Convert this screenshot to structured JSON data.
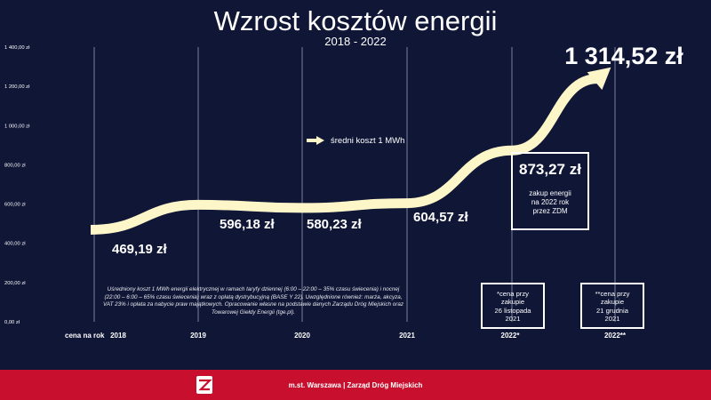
{
  "chart_data": {
    "type": "line",
    "title": "Wzrost kosztów energii",
    "subtitle": "2018 - 2022",
    "x_prefix_label": "cena na rok",
    "categories": [
      "2018",
      "2019",
      "2020",
      "2021",
      "2022*",
      "2022**"
    ],
    "series": [
      {
        "name": "średni koszt 1 MWh",
        "values": [
          469.19,
          596.18,
          580.23,
          604.57,
          873.27,
          1314.52
        ]
      }
    ],
    "data_labels": [
      "469,19 zł",
      "596,18 zł",
      "580,23 zł",
      "604,57 zł",
      "873,27 zł",
      "1 314,52 zł"
    ],
    "yticks": [
      0,
      200,
      400,
      600,
      800,
      1000,
      1200,
      1400
    ],
    "ytick_labels": [
      "0,00 zł",
      "200,00 zł",
      "400,00 zł",
      "600,00 zł",
      "800,00 zł",
      "1 000,00 zł",
      "1 200,00 zł",
      "1 400,00 zł"
    ],
    "ylim": [
      0,
      1400
    ],
    "grid": "vertical lines at categories",
    "legend_position": "center",
    "colors": {
      "background": "#0f1636",
      "line": "#fdf6c9",
      "gridline": "#5a6480",
      "footer": "#c8102e"
    }
  },
  "annotations": {
    "box_main_note": [
      "zakup energii",
      "na 2022 rok",
      "przez ZDM"
    ],
    "box_a": [
      "*cena przy",
      "zakupie",
      "26 listopada",
      "2021"
    ],
    "box_b": [
      "**cena przy",
      "zakupie",
      "21 grudnia",
      "2021"
    ],
    "footnote": "Uśredniony koszt 1 MWh energii elektrycznej w ramach taryfy dziennej (6:00 – 22:00 – 35% czasu świecenia) i nocnej (22:00 – 6:00 – 65% czasu świecenia) wraz z opłatą dystrybucyjną (BASE Y 22). Uwzględnione również: marża, akcyza, VAT 23% i opłata za nabycie praw majątkowych. Opracowanie własne na podstawie danych Zarządu Dróg Miejskich oraz Towarowej Giełdy Energii (tge.pl)."
  },
  "footer": {
    "text": "m.st. Warszawa | Zarząd Dróg Miejskich",
    "logo_icon": "zdm-logo-icon"
  }
}
